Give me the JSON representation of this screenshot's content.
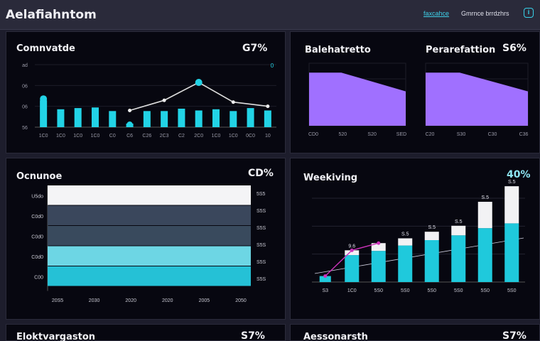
{
  "header": {
    "title": "Aelafiahntom",
    "link_primary": "faxcahce",
    "link_user": "Gmrnce brrdzhrs",
    "icon": "info-icon"
  },
  "panels": {
    "top_left": {
      "title": "Comnvatde",
      "value": "G7%",
      "marker": "0"
    },
    "top_mid": {
      "title": "Balehatretto"
    },
    "top_right": {
      "title": "Perarefattion",
      "value": "S6%"
    },
    "mid_left": {
      "title": "Ocnunoe",
      "value": "CD%"
    },
    "mid_right": {
      "title": "Weekiving",
      "value": "40%"
    },
    "bot_left": {
      "title": "Eloktvargaston",
      "value": "S7%"
    },
    "bot_right": {
      "title": "Aessonarsth",
      "value": "S7%"
    }
  },
  "chart_data": [
    {
      "type": "bar",
      "title": "Comnvatde",
      "y_tick_labels": [
        "ad",
        "06",
        "06",
        "56"
      ],
      "categories": [
        "1C0",
        "1C0",
        "1C0",
        "1C0",
        "C0",
        "C6",
        "C26",
        "2C3",
        "C2",
        "2C0",
        "1C0",
        "1C0",
        "0C0",
        "10"
      ],
      "values": [
        45,
        30,
        32,
        33,
        27,
        6,
        27,
        27,
        31,
        28,
        30,
        27,
        32,
        28
      ],
      "line": [
        null,
        null,
        null,
        null,
        null,
        28,
        null,
        45,
        null,
        75,
        null,
        42,
        null,
        35
      ],
      "ylim": [
        0,
        100
      ],
      "colors": {
        "bar": "#22d3e6",
        "line": "#dedede"
      }
    },
    {
      "type": "area",
      "title": "Balehatretto",
      "categories": [
        "CD0",
        "520",
        "S20",
        "SED"
      ],
      "values": [
        85,
        85,
        70,
        55
      ],
      "ylim": [
        0,
        100
      ],
      "color": "#a070ff"
    },
    {
      "type": "area",
      "title": "Perarefattion",
      "categories": [
        "C20",
        "S30",
        "C30",
        "C36"
      ],
      "values": [
        85,
        85,
        70,
        55
      ],
      "ylim": [
        0,
        100
      ],
      "color": "#a070ff"
    },
    {
      "type": "bar",
      "title": "Ocnunoe",
      "orientation": "horizontal-stacked-bands",
      "bands": [
        {
          "label": "U5do",
          "color": "#f4f4f6"
        },
        {
          "label": "C0d0",
          "color": "#3a475c"
        },
        {
          "label": "C0d0",
          "color": "#394a5d"
        },
        {
          "label": "C0d0",
          "color": "#6dd6e4"
        },
        {
          "label": "C00",
          "color": "#25c1d6"
        }
      ],
      "right_labels": [
        "5S5",
        "S5S",
        "S5S",
        "S5S",
        "S5S",
        "S5S"
      ],
      "categories": [
        "20S5",
        "2030",
        "2020",
        "2020",
        "2005",
        "2050"
      ]
    },
    {
      "type": "bar",
      "title": "Weekiving",
      "categories": [
        "S3",
        "1C0",
        "5S0",
        "5S0",
        "5S0",
        "5S0",
        "5S0",
        "5S0"
      ],
      "values": [
        10,
        45,
        52,
        61,
        70,
        78,
        90,
        98
      ],
      "values_top": [
        0,
        8,
        13,
        12,
        14,
        16,
        44,
        62
      ],
      "data_labels": [
        "",
        "9.6",
        "",
        "S.5",
        "S.5",
        "S.5",
        "S.5",
        "S.5"
      ],
      "ylim": [
        0,
        140
      ],
      "colors": {
        "bar": "#1fc9dc",
        "top": "#f2f2f4",
        "line": "#cc33bb"
      }
    }
  ]
}
